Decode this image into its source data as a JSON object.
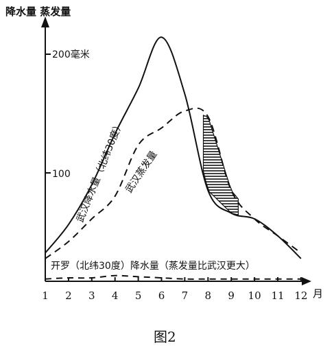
{
  "chart_data": {
    "type": "line",
    "ylabel": "降水量 蒸发量",
    "xunit": "月",
    "ytick_label_200": "200毫米",
    "ytick_label_100": "100",
    "categories": [
      "1",
      "2",
      "3",
      "4",
      "5",
      "6",
      "7",
      "8",
      "9",
      "10",
      "11",
      "12"
    ],
    "ylim": [
      0,
      230
    ],
    "series": [
      {
        "name": "武汉降水量（北纬30度）",
        "style": "solid",
        "values": [
          25,
          50,
          85,
          130,
          170,
          215,
          165,
          80,
          60,
          55,
          40,
          20
        ]
      },
      {
        "name": "武汉蒸发量",
        "style": "dashed",
        "values": [
          20,
          35,
          55,
          75,
          120,
          135,
          150,
          145,
          80,
          55,
          40,
          25
        ]
      },
      {
        "name": "开罗（北纬30度）降水量（蒸发量比武汉更大）",
        "style": "dashed",
        "values": [
          2,
          3,
          3,
          5,
          4,
          3,
          2,
          2,
          2,
          2,
          2,
          2
        ]
      }
    ],
    "shaded_region": {
      "x_start": 7.8,
      "x_end": 9.3,
      "pattern": "horizontal-hatch",
      "between": [
        "武汉降水量",
        "武汉蒸发量"
      ]
    }
  },
  "figure_caption": "图2"
}
